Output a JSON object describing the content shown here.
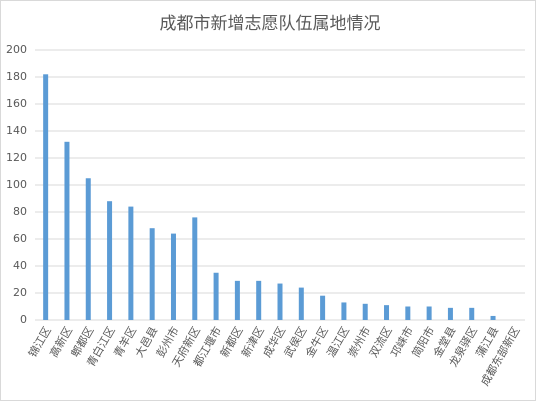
{
  "chart_data": {
    "type": "bar",
    "title": "成都市新增志愿队伍属地情况",
    "categories": [
      "锦江区",
      "高新区",
      "郫都区",
      "青白江区",
      "青羊区",
      "大邑县",
      "彭州市",
      "天府新区",
      "都江堰市",
      "新都区",
      "新津区",
      "成华区",
      "武侯区",
      "金牛区",
      "温江区",
      "崇州市",
      "双流区",
      "邛崃市",
      "简阳市",
      "金堂县",
      "龙泉驿区",
      "蒲江县",
      "成都东部新区"
    ],
    "values": [
      182,
      132,
      105,
      88,
      84,
      68,
      64,
      76,
      35,
      29,
      29,
      27,
      24,
      18,
      13,
      12,
      11,
      10,
      10,
      9,
      9,
      3,
      0
    ],
    "color": "#5b9bd5",
    "ylim": [
      0,
      200
    ],
    "yticks": [
      0,
      20,
      40,
      60,
      80,
      100,
      120,
      140,
      160,
      180,
      200
    ],
    "grid": true
  }
}
